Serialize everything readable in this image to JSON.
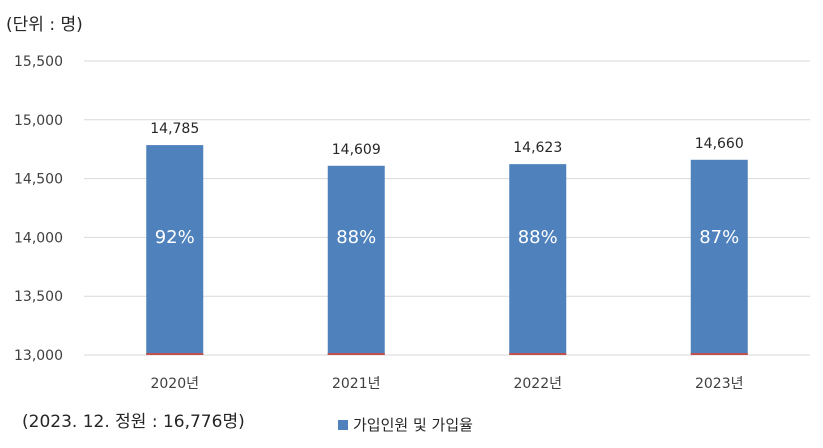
{
  "unit_label": "(단위 : 명)",
  "footnote": "(2023. 12. 정원 : 16,776명)",
  "colors": {
    "bar": "#4f81bd",
    "base_line": "#c0504d",
    "grid": "#d9d9d9"
  },
  "chart_data": {
    "type": "bar",
    "categories": [
      "2020년",
      "2021년",
      "2022년",
      "2023년"
    ],
    "series": [
      {
        "name": "가입인원 및 가입율",
        "values": [
          14785,
          14609,
          14623,
          14660
        ]
      }
    ],
    "value_labels": [
      "14,785",
      "14,609",
      "14,623",
      "14,660"
    ],
    "rate_labels": [
      "92%",
      "88%",
      "88%",
      "87%"
    ],
    "ylim": [
      13000,
      15500
    ],
    "yticks": [
      13000,
      13500,
      14000,
      14500,
      15000,
      15500
    ],
    "ytick_labels": [
      "13,000",
      "13,500",
      "14,000",
      "14,500",
      "15,000",
      "15,500"
    ],
    "grid": true,
    "legend_position": "bottom"
  }
}
